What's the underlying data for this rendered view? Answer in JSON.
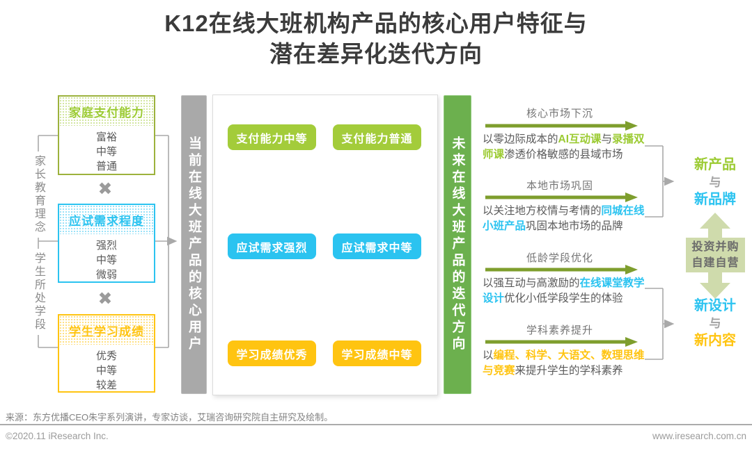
{
  "title": {
    "line1": "K12在线大班机构产品的核心用户特征与",
    "line2": "潜在差异化迭代方向"
  },
  "left_axis": {
    "top": "家长教育理念",
    "bottom": "学生所处学段"
  },
  "multiply": "✖",
  "factors": [
    {
      "title": "家庭支付能力",
      "items": [
        "富裕",
        "中等",
        "普通"
      ]
    },
    {
      "title": "应试需求程度",
      "items": [
        "强烈",
        "中等",
        "微弱"
      ]
    },
    {
      "title": "学生学习成绩",
      "items": [
        "优秀",
        "中等",
        "较差"
      ]
    }
  ],
  "current_bar": "当前在线大班产品的核心用户",
  "future_bar": "未来在线大班产品的迭代方向",
  "matrix": {
    "row1": [
      "支付能力中等",
      "支付能力普通"
    ],
    "row2": [
      "应试需求强烈",
      "应试需求中等"
    ],
    "row3": [
      "学习成绩优秀",
      "学习成绩中等"
    ]
  },
  "directions": [
    {
      "label": "核心市场下沉",
      "segments": [
        {
          "t": "以零边际成本的"
        },
        {
          "t": "AI互动课",
          "hl": "green"
        },
        {
          "t": "与"
        },
        {
          "t": "录播双师课",
          "hl": "green"
        },
        {
          "t": "渗透价格敏感的县域市场"
        }
      ]
    },
    {
      "label": "本地市场巩固",
      "segments": [
        {
          "t": "以关注地方校情与考情的"
        },
        {
          "t": "同城在线小班产品",
          "hl": "blue"
        },
        {
          "t": "巩固本地市场的品牌"
        }
      ]
    },
    {
      "label": "低龄学段优化",
      "segments": [
        {
          "t": "以强互动与高激励的"
        },
        {
          "t": "在线课堂教学设计",
          "hl": "blue"
        },
        {
          "t": "优化小低学段学生的体验"
        }
      ]
    },
    {
      "label": "学科素养提升",
      "segments": [
        {
          "t": "以"
        },
        {
          "t": "编程、科学、大语文、数理思维与竞赛",
          "hl": "yellow"
        },
        {
          "t": "来提升学生的学科素养"
        }
      ]
    }
  ],
  "outcome_top": {
    "l1": "新产品",
    "l2": "与",
    "l3": "新品牌"
  },
  "outcome_bottom": {
    "l1": "新设计",
    "l2": "与",
    "l3": "新内容"
  },
  "exchange": {
    "l1": "投资并购",
    "l2": "自建自营"
  },
  "footer": {
    "source": "来源：东方优播CEO朱宇系列演讲，专家访谈，艾瑞咨询研究院自主研究及绘制。",
    "copyright": "©2020.11 iResearch Inc.",
    "website": "www.iresearch.com.cn"
  },
  "colors": {
    "green": "#9ccb33",
    "blue": "#2bc3f0",
    "yellow": "#ffc411",
    "olive_arrow": "#7e9e2d",
    "gray_bar": "#a9a9a9",
    "green_bar": "#6cb04e",
    "sage": "#cfdbac",
    "wire_gray": "#a9a9a9"
  }
}
